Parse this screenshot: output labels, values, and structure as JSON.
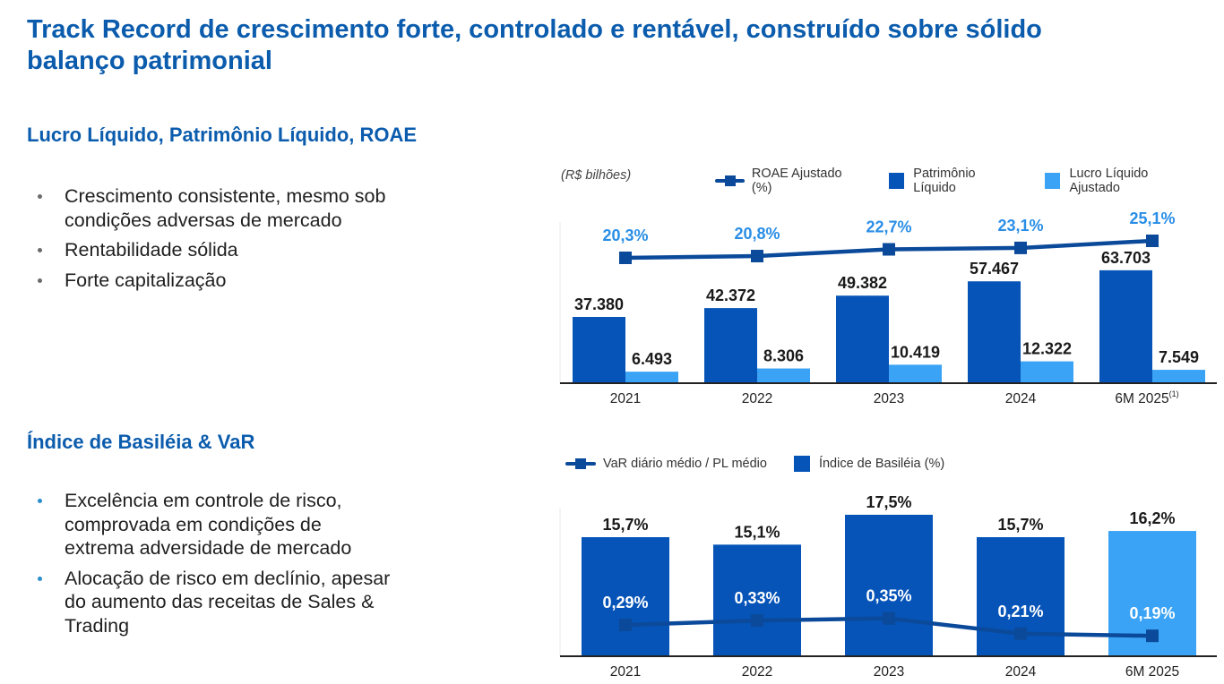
{
  "title": "Track Record de crescimento forte, controlado e rentável, construído sobre sólido balanço patrimonial",
  "section1": {
    "heading": "Lucro Líquido, Patrimônio Líquido, ROAE",
    "bullets": [
      "Crescimento consistente, mesmo sob condições adversas de mercado",
      "Rentabilidade sólida",
      "Forte capitalização"
    ]
  },
  "section2": {
    "heading": "Índice de Basiléia & VaR",
    "bullets": [
      "Excelência em controle de risco, comprovada em condições de extrema adversidade de mercado",
      "Alocação de risco em declínio, apesar do aumento das receitas de Sales & Trading"
    ]
  },
  "colors": {
    "title_blue": "#0b5cad",
    "dark_blue": "#0654b8",
    "light_blue": "#3ba3f5",
    "line_navy": "#0b4a9a",
    "roae_label": "#2a8ee6"
  },
  "chart_data": [
    {
      "type": "bar",
      "title": "",
      "unit_note": "(R$ bilhões)",
      "categories": [
        "2021",
        "2022",
        "2023",
        "2024",
        "6M 2025"
      ],
      "category_footnotes": [
        "",
        "",
        "",
        "",
        "(1)"
      ],
      "legend_position": "top-right",
      "series": [
        {
          "name": "ROAE Ajustado (%)",
          "kind": "line",
          "values": [
            20.3,
            20.8,
            22.7,
            23.1,
            25.1
          ],
          "labels": [
            "20,3%",
            "20,8%",
            "22,7%",
            "23,1%",
            "25,1%"
          ]
        },
        {
          "name": "Patrimônio Líquido",
          "kind": "bar",
          "values": [
            37.38,
            42.372,
            49.382,
            57.467,
            63.703
          ],
          "labels": [
            "37.380",
            "42.372",
            "49.382",
            "57.467",
            "63.703"
          ]
        },
        {
          "name": "Lucro Líquido Ajustado",
          "kind": "bar",
          "values": [
            6.493,
            8.306,
            10.419,
            12.322,
            7.549
          ],
          "labels": [
            "6.493",
            "8.306",
            "10.419",
            "12.322",
            "7.549"
          ]
        }
      ],
      "ylim": [
        0,
        70
      ],
      "grid": false
    },
    {
      "type": "bar",
      "title": "",
      "categories": [
        "2021",
        "2022",
        "2023",
        "2024",
        "6M 2025"
      ],
      "legend_position": "top-left",
      "series": [
        {
          "name": "VaR diário médio / PL médio",
          "kind": "line",
          "values": [
            0.29,
            0.33,
            0.35,
            0.21,
            0.19
          ],
          "labels": [
            "0,29%",
            "0,33%",
            "0,35%",
            "0,21%",
            "0,19%"
          ]
        },
        {
          "name": "Índice de Basiléia (%)",
          "kind": "bar",
          "values": [
            15.7,
            15.1,
            17.5,
            15.7,
            16.2
          ],
          "labels": [
            "15,7%",
            "15,1%",
            "17,5%",
            "15,7%",
            "16,2%"
          ],
          "highlight_last": true
        }
      ],
      "grid": false
    }
  ]
}
